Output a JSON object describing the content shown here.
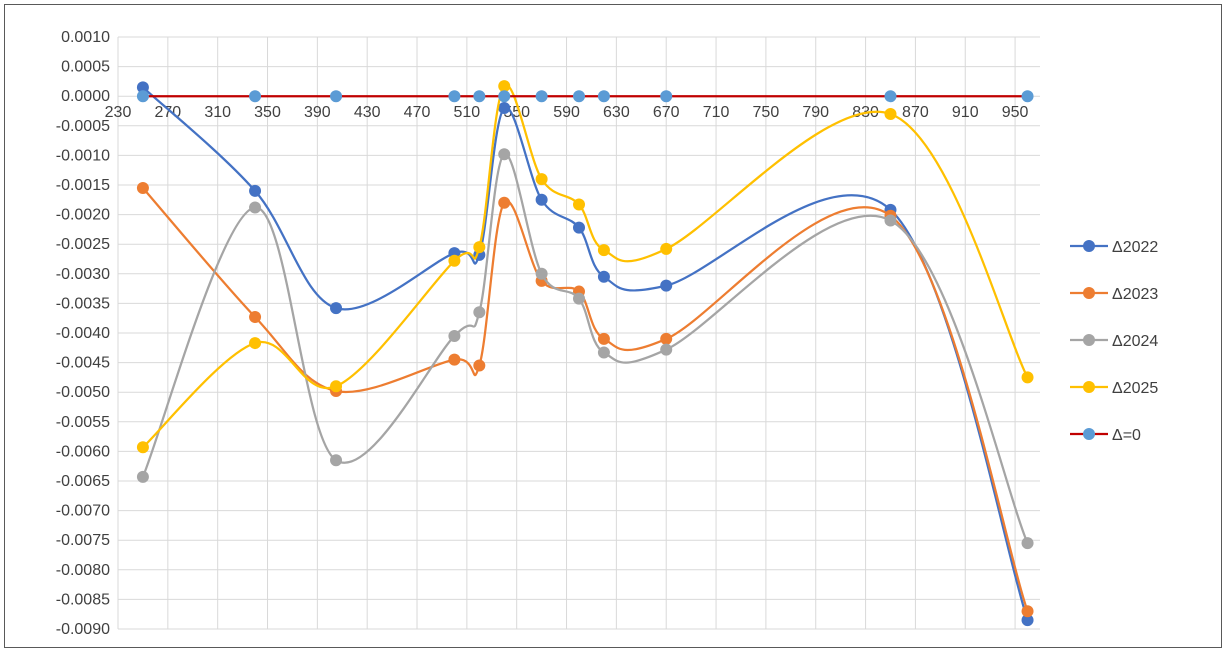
{
  "chart_data": {
    "type": "line",
    "smooth": true,
    "title": "",
    "xlabel": "",
    "ylabel": "",
    "xlim": [
      230,
      970
    ],
    "xticks": [
      230,
      270,
      310,
      350,
      390,
      430,
      470,
      510,
      550,
      590,
      630,
      670,
      710,
      750,
      790,
      830,
      870,
      910,
      950
    ],
    "ylim": [
      -0.009,
      0.001
    ],
    "ystep": 0.0005,
    "y_decimals": 4,
    "grid": true,
    "legend_position": "right",
    "x": [
      250,
      340,
      405,
      500,
      520,
      540,
      570,
      600,
      620,
      670,
      850,
      960
    ],
    "series": [
      {
        "name": "Δ2022",
        "color": "#4472C4",
        "values": [
          0.00015,
          -0.0016,
          -0.00358,
          -0.00265,
          -0.00268,
          -0.0002,
          -0.00175,
          -0.00222,
          -0.00305,
          -0.0032,
          -0.00192,
          -0.00885
        ]
      },
      {
        "name": "Δ2023",
        "color": "#ED7D31",
        "values": [
          -0.00155,
          -0.00373,
          -0.00498,
          -0.00445,
          -0.00455,
          -0.0018,
          -0.00312,
          -0.0033,
          -0.0041,
          -0.0041,
          -0.00202,
          -0.0087
        ]
      },
      {
        "name": "Δ2024",
        "color": "#A5A5A5",
        "values": [
          -0.00643,
          -0.00188,
          -0.00615,
          -0.00405,
          -0.00365,
          -0.00098,
          -0.003,
          -0.00342,
          -0.00433,
          -0.00428,
          -0.0021,
          -0.00755
        ]
      },
      {
        "name": "Δ2025",
        "color": "#FFC000",
        "values": [
          -0.00593,
          -0.00417,
          -0.0049,
          -0.00278,
          -0.00255,
          0.00017,
          -0.0014,
          -0.00183,
          -0.0026,
          -0.00258,
          -0.0003,
          -0.00475
        ]
      },
      {
        "name": "Δ=0",
        "color": "#C00000",
        "marker_color": "#5B9BD5",
        "smooth": false,
        "values": [
          0,
          0,
          0,
          0,
          0,
          0,
          0,
          0,
          0,
          0,
          0,
          0
        ]
      }
    ]
  }
}
